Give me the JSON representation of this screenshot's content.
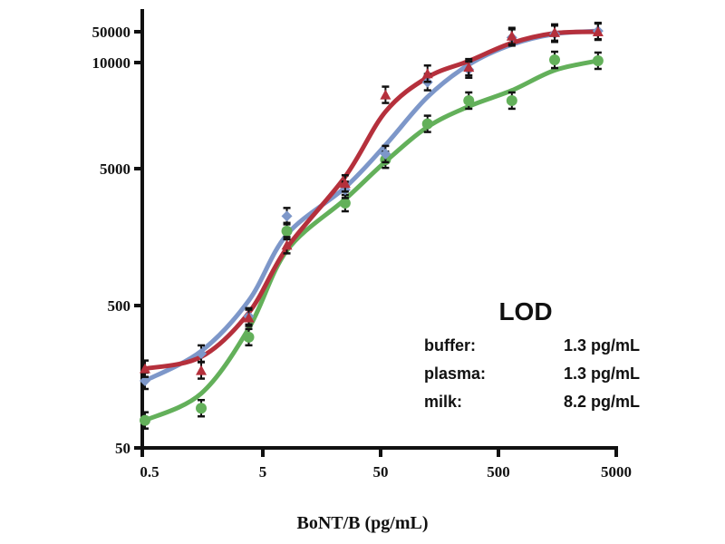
{
  "chart_data": {
    "type": "scatter",
    "title": "",
    "xlabel": "BoNT/B (pg/mL)",
    "ylabel": "",
    "xscale": "log",
    "yscale": "log (broken)",
    "xlim": [
      0.5,
      5000
    ],
    "ylim": [
      50,
      50000
    ],
    "x_ticks": [
      {
        "value": 0.5,
        "label": "0.5"
      },
      {
        "value": 5,
        "label": "5"
      },
      {
        "value": 50,
        "label": "50"
      },
      {
        "value": 500,
        "label": "500"
      },
      {
        "value": 5000,
        "label": "5000"
      }
    ],
    "y_ticks": [
      {
        "value": 50,
        "label": "50"
      },
      {
        "value": 500,
        "label": "500"
      },
      {
        "value": 5000,
        "label": "5000"
      },
      {
        "value": 10000,
        "label": "10000"
      },
      {
        "value": 50000,
        "label": "50000"
      }
    ],
    "x": [
      0.5,
      1.5,
      3.8,
      8,
      25,
      55,
      125,
      280,
      650,
      1500,
      3500
    ],
    "series": [
      {
        "name": "buffer",
        "color": "#b5303c",
        "marker": "triangle",
        "values": [
          180,
          175,
          410,
          1380,
          3900,
          8100,
          9300,
          9700,
          40000,
          48000,
          50000
        ]
      },
      {
        "name": "plasma",
        "color": "#7d97c9",
        "marker": "diamond",
        "values": [
          148,
          230,
          420,
          2250,
          3500,
          5500,
          8800,
          9550,
          37000,
          45000,
          52000
        ]
      },
      {
        "name": "milk",
        "color": "#63b05a",
        "marker": "circle",
        "values": [
          78,
          95,
          300,
          1750,
          2800,
          5300,
          6700,
          7800,
          7800,
          11500,
          11000
        ]
      }
    ],
    "annotation": {
      "title": "LOD",
      "rows": [
        {
          "label": "buffer:",
          "value": "1.3 pg/mL"
        },
        {
          "label": "plasma:",
          "value": "1.3 pg/mL"
        },
        {
          "label": "milk:",
          "value": "8.2 pg/mL"
        }
      ]
    },
    "grid": false,
    "legend": "none"
  }
}
